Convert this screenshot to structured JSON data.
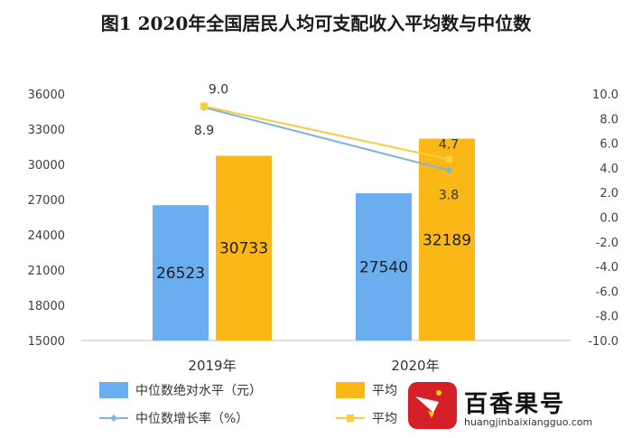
{
  "chart_data": {
    "type": "bar",
    "title": "图1   2020年全国居民人均可支配收入平均数与中位数",
    "categories": [
      "2019年",
      "2020年"
    ],
    "series": [
      {
        "name": "中位数绝对水平（元）",
        "kind": "bar",
        "axis": "left",
        "color": "#6aaef0",
        "values": [
          26523,
          27540
        ]
      },
      {
        "name": "平均数绝对水平（元）",
        "kind": "bar",
        "axis": "left",
        "color": "#fbb715",
        "values": [
          30733,
          32189
        ]
      },
      {
        "name": "中位数增长率（%）",
        "kind": "line",
        "axis": "right",
        "color": "#7fb4de",
        "values": [
          8.9,
          3.8
        ]
      },
      {
        "name": "平均数增长率（%）",
        "kind": "line",
        "axis": "right",
        "color": "#f5cd3e",
        "values": [
          9.0,
          4.7
        ]
      }
    ],
    "y_left": {
      "min": 15000,
      "max": 36000,
      "ticks": [
        "15000",
        "18000",
        "21000",
        "24000",
        "27000",
        "30000",
        "33000",
        "36000"
      ]
    },
    "y_right": {
      "min": -10,
      "max": 10,
      "ticks": [
        "-10.0",
        "-8.0",
        "-6.0",
        "-4.0",
        "-2.0",
        "0.0",
        "2.0",
        "4.0",
        "6.0",
        "8.0",
        "10.0"
      ]
    },
    "legend_labels": [
      "中位数绝对水平（元）",
      "平均",
      "中位数增长率（%）",
      "平均"
    ],
    "grid": false,
    "legend_position": "bottom"
  },
  "watermark": {
    "name": "百香果号",
    "url": "huangjinbaixiangguo.com"
  }
}
